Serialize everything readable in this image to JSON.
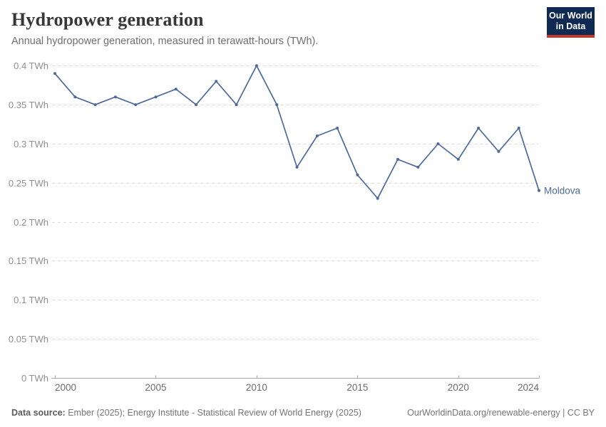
{
  "header": {
    "title": "Hydropower generation",
    "subtitle": "Annual hydropower generation, measured in terawatt-hours (TWh)."
  },
  "logo": {
    "line1": "Our World",
    "line2": "in Data"
  },
  "chart_data": {
    "type": "line",
    "title": "Hydropower generation",
    "xlabel": "",
    "ylabel": "",
    "xlim": [
      2000,
      2024
    ],
    "ylim": [
      0,
      0.4
    ],
    "xticks": [
      2000,
      2005,
      2010,
      2015,
      2020,
      2024
    ],
    "yticks": [
      0,
      0.05,
      0.1,
      0.15,
      0.2,
      0.25,
      0.3,
      0.35,
      0.4
    ],
    "ytick_format": "{v} TWh",
    "grid": "horizontal-dashed",
    "legend_position": "end-of-line",
    "series": [
      {
        "name": "Moldova",
        "color": "#4C6A9C",
        "x": [
          2000,
          2001,
          2002,
          2003,
          2004,
          2005,
          2006,
          2007,
          2008,
          2009,
          2010,
          2011,
          2012,
          2013,
          2014,
          2015,
          2016,
          2017,
          2018,
          2019,
          2020,
          2021,
          2022,
          2023,
          2024
        ],
        "values": [
          0.39,
          0.36,
          0.35,
          0.36,
          0.35,
          0.36,
          0.37,
          0.35,
          0.38,
          0.35,
          0.4,
          0.35,
          0.27,
          0.31,
          0.32,
          0.26,
          0.23,
          0.28,
          0.27,
          0.3,
          0.28,
          0.32,
          0.29,
          0.32,
          0.24
        ]
      }
    ]
  },
  "footer": {
    "datasource_label": "Data source:",
    "datasource_text": " Ember (2025); Energy Institute - Statistical Review of World Energy (2025)",
    "link_text": "OurWorldinData.org/renewable-energy | CC BY"
  },
  "colors": {
    "line": "#4C6A9C",
    "entity_label": "#4C6A9C",
    "gridline": "#dadada",
    "axis": "#a3a3a3",
    "ytick_label": "#8f8f8f",
    "xtick_label": "#6b6b6b",
    "logo_bg": "#0e2a52",
    "logo_underline": "#c0392b"
  }
}
